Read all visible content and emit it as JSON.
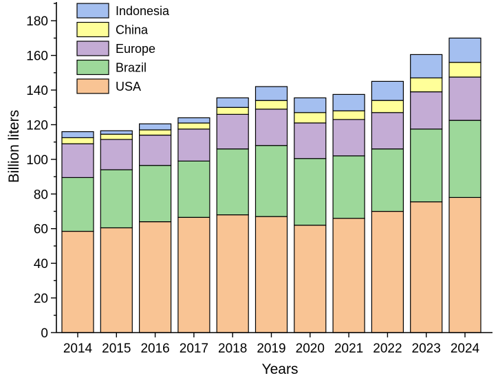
{
  "chart_data": {
    "type": "bar",
    "stacked": true,
    "xlabel": "Years",
    "ylabel": "Billion liters",
    "categories": [
      "2014",
      "2015",
      "2016",
      "2017",
      "2018",
      "2019",
      "2020",
      "2021",
      "2022",
      "2023",
      "2024"
    ],
    "ylim": [
      0,
      190
    ],
    "yticks": [
      0,
      20,
      40,
      60,
      80,
      100,
      120,
      140,
      160,
      180
    ],
    "legend_position": "top-left",
    "series": [
      {
        "name": "USA",
        "color": "#f9c494",
        "values": [
          58.5,
          60.5,
          64,
          66.5,
          68,
          67,
          62,
          66,
          70,
          75.5,
          78
        ]
      },
      {
        "name": "Brazil",
        "color": "#9dd89a",
        "values": [
          31,
          33.5,
          32.5,
          32.5,
          38,
          41,
          38.5,
          36,
          36,
          42,
          44.5
        ]
      },
      {
        "name": "Europe",
        "color": "#c4acd5",
        "values": [
          19.5,
          17.5,
          17.5,
          18.5,
          20,
          21,
          20.5,
          21,
          21,
          21.5,
          25
        ]
      },
      {
        "name": "China",
        "color": "#ffff99",
        "values": [
          3.5,
          3,
          3,
          3.5,
          4,
          5,
          6,
          5,
          7,
          8,
          8.5
        ]
      },
      {
        "name": "Indonesia",
        "color": "#a4bff0",
        "values": [
          3.5,
          2,
          3.5,
          3,
          5.5,
          8,
          8.5,
          9.5,
          11,
          13.5,
          14
        ]
      }
    ]
  }
}
